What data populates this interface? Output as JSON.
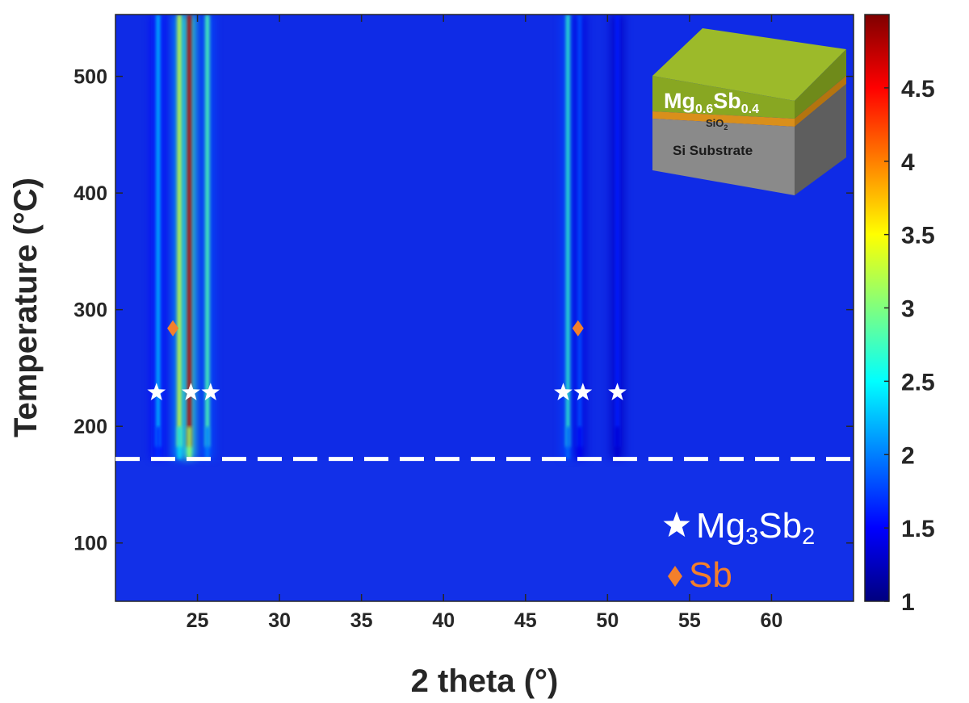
{
  "chart_data": {
    "type": "heatmap",
    "xlabel": "2 theta (°)",
    "ylabel": "Temperature (°C)",
    "xlim": [
      20,
      65
    ],
    "ylim": [
      50,
      553
    ],
    "xticks": [
      25,
      30,
      35,
      40,
      45,
      50,
      55,
      60
    ],
    "yticks": [
      100,
      200,
      300,
      400,
      500
    ],
    "colorbar": {
      "range": [
        1,
        5
      ],
      "ticks": [
        1,
        1.5,
        2,
        2.5,
        3,
        3.5,
        4,
        4.5
      ],
      "colormap": "jet"
    },
    "threshold_line": {
      "temperature": 172,
      "style": "dashed",
      "color": "#ffffff"
    },
    "peaks": [
      {
        "two_theta": 22.6,
        "intensity": 2.2,
        "onset_temperature": 172
      },
      {
        "two_theta": 23.9,
        "intensity": 3.4,
        "onset_temperature": 172
      },
      {
        "two_theta": 24.5,
        "intensity": 4.8,
        "onset_temperature": 172
      },
      {
        "two_theta": 25.6,
        "intensity": 2.8,
        "onset_temperature": 172
      },
      {
        "two_theta": 47.6,
        "intensity": 2.7,
        "onset_temperature": 172
      },
      {
        "two_theta": 48.3,
        "intensity": 1.8,
        "onset_temperature": 172
      },
      {
        "two_theta": 50.6,
        "intensity": 1.6,
        "onset_temperature": 172
      }
    ],
    "markers": [
      {
        "phase": "Mg3Sb2",
        "symbol": "star",
        "points": [
          [
            22.5,
            229
          ],
          [
            24.6,
            229
          ],
          [
            25.8,
            229
          ],
          [
            47.3,
            229
          ],
          [
            48.5,
            229
          ],
          [
            50.6,
            229
          ]
        ]
      },
      {
        "phase": "Sb",
        "symbol": "diamond",
        "points": [
          [
            23.5,
            284
          ],
          [
            48.2,
            284
          ]
        ]
      }
    ],
    "legend": {
      "placement": "bottom-right",
      "entries": [
        {
          "symbol": "star",
          "label_main": "Mg",
          "sub1": "3",
          "label_mid": "Sb",
          "sub2": "2",
          "color": "#ffffff"
        },
        {
          "symbol": "diamond",
          "label_main": "Sb",
          "color": "#f37f2b"
        }
      ]
    },
    "inset": {
      "placement": "top-right",
      "layers": [
        {
          "name_main": "Mg",
          "sub1": "0.6",
          "name_mid": "Sb",
          "sub2": "0.4",
          "color": "#9cba2a"
        },
        {
          "name_main": "SiO",
          "sub1": "2",
          "color": "#d98f1b"
        },
        {
          "name_main": "Si Substrate",
          "color": "#8a8a8a"
        }
      ]
    }
  }
}
